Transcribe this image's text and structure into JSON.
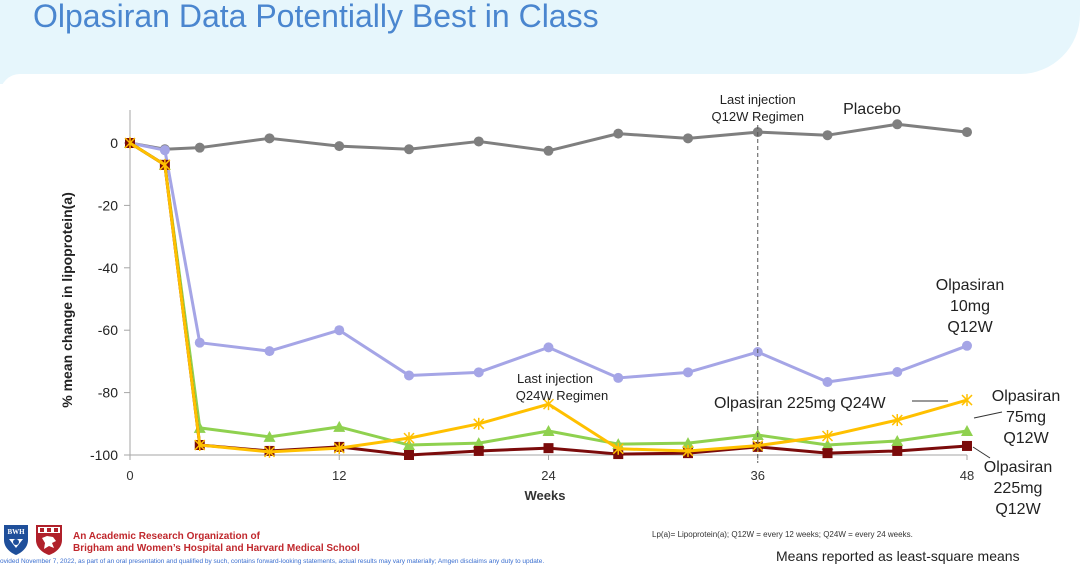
{
  "header": {
    "title": "Olpasiran Data Potentially Best in Class"
  },
  "chart_data": {
    "type": "line",
    "title": "",
    "xlabel": "Weeks",
    "ylabel": "% mean change in lipoprotein(a)",
    "xlim": [
      0,
      48
    ],
    "ylim": [
      -100,
      10
    ],
    "x_ticks": [
      0,
      12,
      24,
      36,
      48
    ],
    "y_ticks": [
      0,
      -20,
      -40,
      -60,
      -80,
      -100
    ],
    "x": [
      0,
      2,
      4,
      8,
      12,
      16,
      20,
      24,
      28,
      32,
      36,
      40,
      44,
      48
    ],
    "series": [
      {
        "name": "Placebo",
        "color": "#7f7f7f",
        "marker": "circle",
        "values": [
          0,
          -2,
          -1.5,
          1.5,
          -1,
          -2,
          0.5,
          -2.5,
          3,
          1.5,
          3.5,
          2.5,
          6,
          3.5
        ]
      },
      {
        "name": "Olpasiran 10mg Q12W",
        "color": "#a5a5e6",
        "marker": "circle",
        "values": [
          0,
          -2.3,
          -64,
          -66.7,
          -60,
          -74.5,
          -73.5,
          -65.5,
          -75.3,
          -73.5,
          -67,
          -76.6,
          -73.4,
          -65
        ]
      },
      {
        "name": "Olpasiran 75mg Q12W",
        "color": "#8fd14f",
        "marker": "triangle",
        "values": [
          0,
          -7,
          -91.3,
          -94.2,
          -91,
          -96.8,
          -96.2,
          -92.3,
          -96.5,
          -96.2,
          -93.6,
          -96.8,
          -95.5,
          -92.3
        ]
      },
      {
        "name": "Olpasiran 225mg Q12W",
        "color": "#7b0b0b",
        "marker": "square",
        "values": [
          0,
          -7,
          -96.8,
          -98.7,
          -97.4,
          -100,
          -98.7,
          -97.8,
          -99.7,
          -99.4,
          -97.4,
          -99.4,
          -98.7,
          -97.1
        ]
      },
      {
        "name": "Olpasiran 225mg Q24W",
        "color": "#ffc000",
        "marker": "star",
        "values": [
          0,
          -7,
          -96.8,
          -99,
          -97.8,
          -94.6,
          -90,
          -83.7,
          -98,
          -98.7,
          -97,
          -93.9,
          -88.8,
          -82.4
        ]
      }
    ],
    "annotations": {
      "q12w_last_injection": {
        "week": 36,
        "line1": "Last injection",
        "line2": "Q12W Regimen"
      },
      "q24w_last_injection": {
        "line1": "Last injection",
        "line2": "Q24W Regimen"
      }
    },
    "labels": {
      "placebo": [
        "Placebo"
      ],
      "olp10": [
        "Olpasiran",
        "10mg",
        "Q12W"
      ],
      "olp75": [
        "Olpasiran",
        "75mg",
        "Q12W"
      ],
      "olp225q12": [
        "Olpasiran",
        "225mg",
        "Q12W"
      ],
      "olp225q24": [
        "Olpasiran 225mg Q24W"
      ]
    }
  },
  "footer": {
    "logo_bwh_text": "BWH",
    "org_line1": "An Academic Research Organization of",
    "org_line2": "Brigham and Women’s Hospital and Harvard Medical School",
    "disclaimer": "ovided November 7, 2022, as part of an oral presentation and qualified by such, contains forward-looking statements, actual results may vary materially; Amgen disclaims any duty to update.",
    "abbreviations": "Lp(a)= Lipoprotein(a); Q12W = every 12 weeks; Q24W = every 24 weeks.",
    "means_note": "Means reported as least-square means"
  }
}
